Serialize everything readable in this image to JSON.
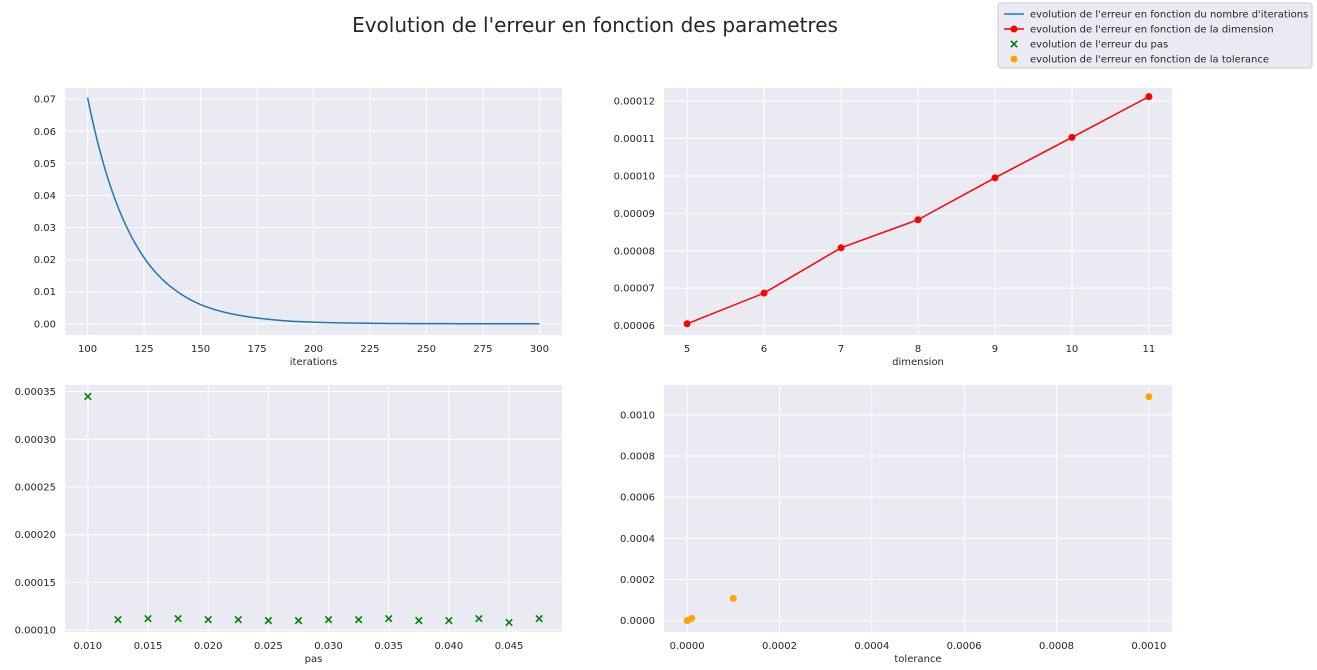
{
  "figure": {
    "title": "Evolution de l'erreur en fonction des parametres"
  },
  "legend": {
    "placement": "top-right",
    "entries": [
      {
        "label": "evolution de l'erreur en fonction du nombre d'iterations",
        "marker": "line",
        "color": "#1f77b4"
      },
      {
        "label": "evolution de l'erreur en fonction de la dimension",
        "marker": "line-dot",
        "color": "#ff0000"
      },
      {
        "label": "evolution de l'erreur du pas",
        "marker": "x",
        "color": "#008000"
      },
      {
        "label": "evolution de l'erreur en fonction de la tolerance",
        "marker": "dot",
        "color": "#ffa500"
      }
    ]
  },
  "chart_data": [
    {
      "type": "line",
      "xlabel": "iterations",
      "ylabel": "",
      "color": "#1f77b4",
      "xlim": [
        90,
        310
      ],
      "ylim": [
        -0.0035,
        0.0735
      ],
      "xticks": [
        100,
        125,
        150,
        175,
        200,
        225,
        250,
        275,
        300
      ],
      "yticks": [
        0.0,
        0.01,
        0.02,
        0.03,
        0.04,
        0.05,
        0.06,
        0.07
      ],
      "ytick_labels": [
        "0.00",
        "0.01",
        "0.02",
        "0.03",
        "0.04",
        "0.05",
        "0.06",
        "0.07"
      ],
      "x": [
        100,
        110,
        120,
        130,
        140,
        150,
        160,
        170,
        180,
        190,
        200,
        210,
        220,
        230,
        240,
        250,
        260,
        270,
        280,
        290,
        300
      ],
      "y": [
        0.0705,
        0.0431,
        0.0264,
        0.0161,
        0.0099,
        0.006,
        0.0037,
        0.0023,
        0.0014,
        0.0008,
        0.0005,
        0.0003,
        0.0002,
        0.00012,
        7e-05,
        4e-05,
        3e-05,
        2e-05,
        1e-05,
        1e-05,
        0.0
      ],
      "grid": true
    },
    {
      "type": "line",
      "xlabel": "dimension",
      "ylabel": "",
      "color": "#ff0000",
      "markers": true,
      "xlim": [
        4.7,
        11.3
      ],
      "ylim": [
        5.75e-05,
        0.0001235
      ],
      "xticks": [
        5,
        6,
        7,
        8,
        9,
        10,
        11
      ],
      "yticks": [
        6e-05,
        7e-05,
        8e-05,
        9e-05,
        0.0001,
        0.00011,
        0.00012
      ],
      "ytick_labels": [
        "0.00006",
        "0.00007",
        "0.00008",
        "0.00009",
        "0.00010",
        "0.00011",
        "0.00012"
      ],
      "x": [
        5,
        6,
        7,
        8,
        9,
        10,
        11
      ],
      "y": [
        6.05e-05,
        6.87e-05,
        8.08e-05,
        8.83e-05,
        9.95e-05,
        0.0001103,
        0.0001212
      ],
      "grid": true
    },
    {
      "type": "scatter",
      "xlabel": "pas",
      "ylabel": "",
      "color": "#008000",
      "marker": "x",
      "xlim": [
        0.0081,
        0.0494
      ],
      "ylim": [
        9.8e-05,
        0.000357
      ],
      "xticks": [
        0.01,
        0.015,
        0.02,
        0.025,
        0.03,
        0.035,
        0.04,
        0.045
      ],
      "xtick_labels": [
        "0.010",
        "0.015",
        "0.020",
        "0.025",
        "0.030",
        "0.035",
        "0.040",
        "0.045"
      ],
      "yticks": [
        0.0001,
        0.00015,
        0.0002,
        0.00025,
        0.0003,
        0.00035
      ],
      "ytick_labels": [
        "0.00010",
        "0.00015",
        "0.00020",
        "0.00025",
        "0.00030",
        "0.00035"
      ],
      "x": [
        0.01,
        0.0125,
        0.015,
        0.0175,
        0.02,
        0.0225,
        0.025,
        0.0275,
        0.03,
        0.0325,
        0.035,
        0.0375,
        0.04,
        0.0425,
        0.045,
        0.0475
      ],
      "y": [
        0.000345,
        0.000111,
        0.000112,
        0.000112,
        0.000111,
        0.000111,
        0.00011,
        0.00011,
        0.000111,
        0.000111,
        0.000112,
        0.00011,
        0.00011,
        0.000112,
        0.000108,
        0.000112
      ],
      "grid": true
    },
    {
      "type": "scatter",
      "xlabel": "tolerance",
      "ylabel": "",
      "color": "#ffa500",
      "marker": "o",
      "xlim": [
        -5e-05,
        0.00105
      ],
      "ylim": [
        -5.5e-05,
        0.001145
      ],
      "xticks": [
        0.0,
        0.0002,
        0.0004,
        0.0006,
        0.0008,
        0.001
      ],
      "xtick_labels": [
        "0.0000",
        "0.0002",
        "0.0004",
        "0.0006",
        "0.0008",
        "0.0010"
      ],
      "yticks": [
        0.0,
        0.0002,
        0.0004,
        0.0006,
        0.0008,
        0.001
      ],
      "ytick_labels": [
        "0.0000",
        "0.0002",
        "0.0004",
        "0.0006",
        "0.0008",
        "0.0010"
      ],
      "x": [
        1e-07,
        1e-06,
        1e-05,
        0.0001,
        0.001
      ],
      "y": [
        1e-07,
        1e-06,
        1.1e-05,
        0.000108,
        0.001088
      ],
      "grid": true
    }
  ]
}
